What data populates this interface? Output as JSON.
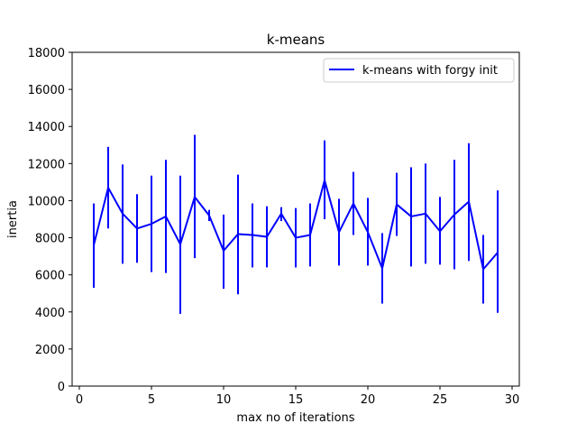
{
  "chart_data": {
    "type": "line",
    "title": "k-means",
    "xlabel": "max no of iterations",
    "ylabel": "inertia",
    "xlim": [
      -0.5,
      30.5
    ],
    "ylim": [
      0,
      18000
    ],
    "xticks": [
      0,
      5,
      10,
      15,
      20,
      25,
      30
    ],
    "yticks": [
      0,
      2000,
      4000,
      6000,
      8000,
      10000,
      12000,
      14000,
      16000,
      18000
    ],
    "grid": false,
    "legend": {
      "position": "top-right"
    },
    "colors": {
      "series": "#0000ff",
      "axes": "#000000"
    },
    "series": [
      {
        "name": "k-means with forgy init",
        "x": [
          1,
          2,
          3,
          4,
          5,
          6,
          7,
          8,
          9,
          10,
          11,
          12,
          13,
          14,
          15,
          16,
          17,
          18,
          19,
          20,
          21,
          22,
          23,
          24,
          25,
          26,
          27,
          28,
          29
        ],
        "y": [
          7600,
          10700,
          9300,
          8500,
          8750,
          9150,
          7650,
          10200,
          9200,
          7300,
          8200,
          8150,
          8050,
          9300,
          8000,
          8150,
          11100,
          8300,
          9850,
          8300,
          6350,
          9800,
          9150,
          9300,
          8350,
          9250,
          9950,
          6300,
          7200
        ],
        "err_low": [
          5300,
          8500,
          6600,
          6650,
          6150,
          6100,
          3900,
          6900,
          8900,
          5250,
          4950,
          6400,
          6400,
          8900,
          6400,
          6450,
          9000,
          6500,
          8150,
          6500,
          4450,
          8100,
          6450,
          6600,
          6550,
          6300,
          6750,
          4450,
          3950
        ],
        "err_high": [
          9850,
          12900,
          11950,
          10350,
          11350,
          12200,
          11350,
          13550,
          9500,
          9250,
          11400,
          9850,
          9700,
          9650,
          9600,
          9850,
          13250,
          10100,
          11550,
          10150,
          8250,
          11500,
          11800,
          12000,
          10200,
          12200,
          13100,
          8150,
          10550
        ]
      }
    ]
  }
}
